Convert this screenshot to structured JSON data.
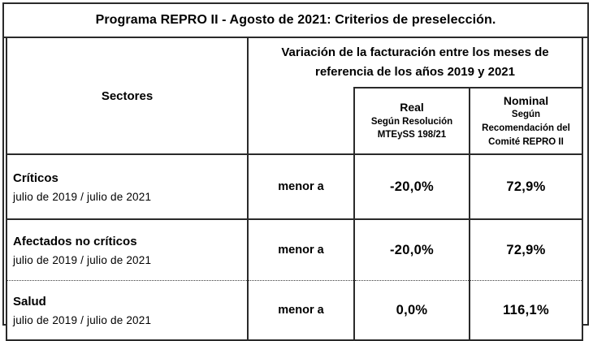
{
  "title": "Programa REPRO II - Agosto de 2021: Criterios de preselección.",
  "table": {
    "sectors_header": "Sectores",
    "variation_header": {
      "line1": "Variación de la facturación entre los meses de",
      "line2": "referencia de los años 2019 y 2021"
    },
    "real_header": {
      "title": "Real",
      "sub1": "Según Resolución",
      "sub2": "MTEySS 198/21"
    },
    "nominal_header": {
      "title": "Nominal",
      "sub1": "Según",
      "sub2": "Recomendación del",
      "sub3": "Comité REPRO II"
    },
    "rows": [
      {
        "sector": "Críticos",
        "period": "julio de 2019 / julio de 2021",
        "operator": "menor a",
        "real": "-20,0%",
        "nominal": "72,9%"
      },
      {
        "sector": "Afectados no críticos",
        "period": "julio de 2019 / julio de 2021",
        "operator": "menor a",
        "real": "-20,0%",
        "nominal": "72,9%"
      },
      {
        "sector": "Salud",
        "period": "julio de 2019 / julio de 2021",
        "operator": "menor a",
        "real": "0,0%",
        "nominal": "116,1%"
      }
    ]
  },
  "colors": {
    "border": "#2a2a2a",
    "text": "#000000",
    "background": "#ffffff"
  }
}
